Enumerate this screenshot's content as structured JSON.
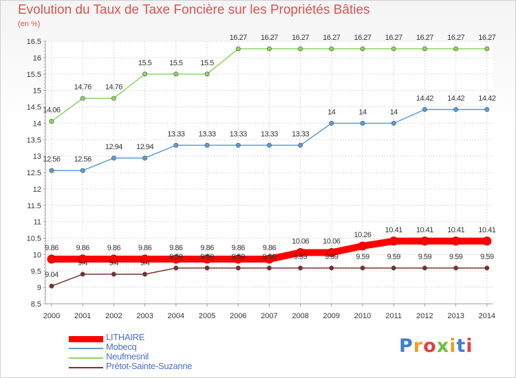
{
  "chart_data": {
    "type": "line",
    "title": "Evolution du Taux de Taxe Foncière sur les Propriétés Bâties",
    "subtitle": "(en %)",
    "x": [
      "2000",
      "2001",
      "2002",
      "2003",
      "2004",
      "2005",
      "2006",
      "2007",
      "2008",
      "2009",
      "2010",
      "2011",
      "2012",
      "2013",
      "2014"
    ],
    "ylim": [
      8.5,
      16.5
    ],
    "yticks": [
      "8.5",
      "9",
      "9.5",
      "10",
      "10.5",
      "11",
      "11.5",
      "12",
      "12.5",
      "13",
      "13.5",
      "14",
      "14.5",
      "15",
      "15.5",
      "16",
      "16.5"
    ],
    "grid": true,
    "legend_position": "bottom-left",
    "series": [
      {
        "name": "LITHAIRE",
        "color": "#ff0000",
        "values": [
          9.86,
          9.86,
          9.86,
          9.86,
          9.86,
          9.86,
          9.86,
          9.86,
          10.06,
          10.06,
          10.26,
          10.41,
          10.41,
          10.41,
          10.41
        ],
        "labels": [
          "9.86",
          "9.86",
          "9.86",
          "9.86",
          "9.86",
          "9.86",
          "9.86",
          "9.86",
          "10.06",
          "10.06",
          "10.26",
          "10.41",
          "10.41",
          "10.41",
          "10.41"
        ]
      },
      {
        "name": "Mobecq",
        "color": "#5b9bd5",
        "values": [
          12.56,
          12.56,
          12.94,
          12.94,
          13.33,
          13.33,
          13.33,
          13.33,
          13.33,
          14,
          14,
          14,
          14.42,
          14.42,
          14.42
        ],
        "labels": [
          "12.56",
          "12.56",
          "12.94",
          "12.94",
          "13.33",
          "13.33",
          "13.33",
          "13.33",
          "13.33",
          "14",
          "14",
          "14",
          "14.42",
          "14.42",
          "14.42"
        ]
      },
      {
        "name": "Neufmesnil",
        "color": "#8dd35f",
        "values": [
          14.06,
          14.76,
          14.76,
          15.5,
          15.5,
          15.5,
          16.27,
          16.27,
          16.27,
          16.27,
          16.27,
          16.27,
          16.27,
          16.27,
          16.27
        ],
        "labels": [
          "14.06",
          "14.76",
          "14.76",
          "15.5",
          "15.5",
          "15.5",
          "16.27",
          "16.27",
          "16.27",
          "16.27",
          "16.27",
          "16.27",
          "16.27",
          "16.27",
          "16.27"
        ]
      },
      {
        "name": "Prétot-Sainte-Suzanne",
        "color": "#7b2e2e",
        "values": [
          9.04,
          9.4,
          9.4,
          9.4,
          9.59,
          9.59,
          9.59,
          9.59,
          9.59,
          9.59,
          9.59,
          9.59,
          9.59,
          9.59,
          9.59
        ],
        "labels": [
          "9.04",
          "9.4",
          "9.4",
          "9.4",
          "9.59",
          "9.59",
          "9.59",
          "9.59",
          "9.59",
          "9.59",
          "9.59",
          "9.59",
          "9.59",
          "9.59",
          "9.59"
        ]
      }
    ]
  },
  "logo": {
    "letters": [
      "P",
      "r",
      "o",
      "x",
      "i",
      "t",
      "i"
    ],
    "colors": [
      "#3b7fd4",
      "#f0a020",
      "#e04040",
      "#6cbf3c",
      "#f0a020",
      "#3b7fd4",
      "#e04040"
    ]
  }
}
